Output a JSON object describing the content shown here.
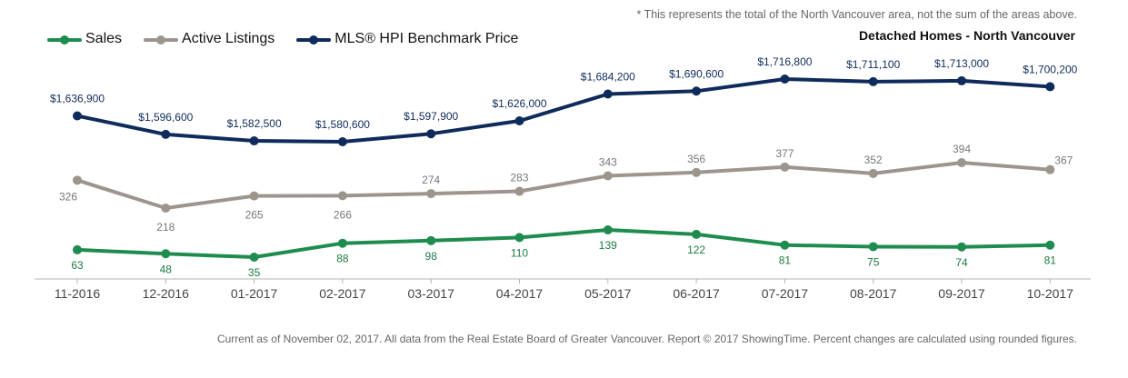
{
  "note": "* This represents the total of the North Vancouver area, not the sum of the areas above.",
  "subtitle": "Detached Homes - North Vancouver",
  "footer": "Current as of November 02, 2017. All data from the Real Estate Board of Greater Vancouver. Report © 2017 ShowingTime. Percent changes are calculated using rounded figures.",
  "colors": {
    "sales": "#1e8c4e",
    "listings": "#9c958c",
    "hpi": "#0f2b5b"
  },
  "chart_data": {
    "type": "line",
    "categories": [
      "11-2016",
      "12-2016",
      "01-2017",
      "02-2017",
      "03-2017",
      "04-2017",
      "05-2017",
      "06-2017",
      "07-2017",
      "08-2017",
      "09-2017",
      "10-2017"
    ],
    "grid": false,
    "legend_position": "top-left",
    "series": [
      {
        "key": "sales",
        "name": "Sales",
        "values": [
          63,
          48,
          35,
          88,
          98,
          110,
          139,
          122,
          81,
          75,
          74,
          81
        ],
        "labels": [
          "63",
          "48",
          "35",
          "88",
          "98",
          "110",
          "139",
          "122",
          "81",
          "75",
          "74",
          "81"
        ]
      },
      {
        "key": "listings",
        "name": "Active Listings",
        "values": [
          326,
          218,
          265,
          266,
          274,
          283,
          343,
          356,
          377,
          352,
          394,
          367
        ],
        "labels": [
          "326",
          "218",
          "265",
          "266",
          "274",
          "283",
          "343",
          "356",
          "377",
          "352",
          "394",
          "367"
        ]
      },
      {
        "key": "hpi",
        "name": "MLS® HPI Benchmark Price",
        "values": [
          1636900,
          1596600,
          1582500,
          1580600,
          1597900,
          1626000,
          1684200,
          1690600,
          1716800,
          1711100,
          1713000,
          1700200
        ],
        "labels": [
          "$1,636,900",
          "$1,596,600",
          "$1,582,500",
          "$1,580,600",
          "$1,597,900",
          "$1,626,000",
          "$1,684,200",
          "$1,690,600",
          "$1,716,800",
          "$1,711,100",
          "$1,713,000",
          "$1,700,200"
        ]
      }
    ]
  }
}
